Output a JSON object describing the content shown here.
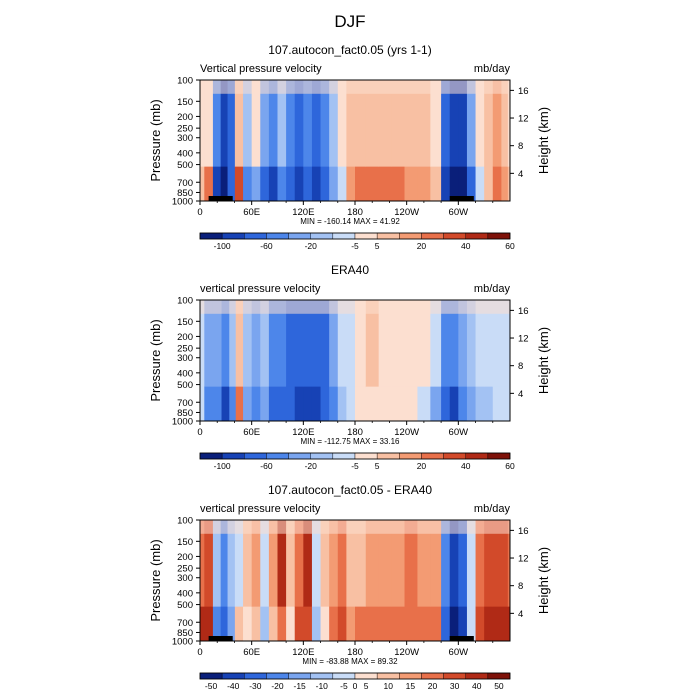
{
  "figure": {
    "title": "DJF"
  },
  "colorscales": {
    "abs": {
      "colors": [
        "#0a1f7a",
        "#1742b5",
        "#2e66db",
        "#4d86ea",
        "#7aa5ef",
        "#a3c2f3",
        "#c9dcf7",
        "#fcdfd0",
        "#f8c0a3",
        "#f39b73",
        "#e8704a",
        "#d24a2a",
        "#b02a16",
        "#7e1209"
      ],
      "tick_labels": [
        "-100",
        "-60",
        "-20",
        "-5",
        "5",
        "20",
        "40",
        "60"
      ],
      "tick_boundaries": [
        1,
        3,
        5,
        7,
        8,
        10,
        12,
        14
      ]
    },
    "diff": {
      "colors": [
        "#0a1f7a",
        "#1742b5",
        "#2e66db",
        "#4d86ea",
        "#7aa5ef",
        "#a3c2f3",
        "#c9dcf7",
        "#fcdfd0",
        "#f8c0a3",
        "#f39b73",
        "#e8704a",
        "#d24a2a",
        "#b02a16",
        "#7e1209"
      ],
      "tick_labels": [
        "-50",
        "-40",
        "-30",
        "-20",
        "-15",
        "-10",
        "-5",
        "0",
        "5",
        "10",
        "15",
        "20",
        "30",
        "40",
        "50"
      ],
      "tick_boundaries": [
        0.5,
        1.5,
        2.5,
        3.5,
        4.5,
        5.5,
        6.5,
        7,
        7.5,
        8.5,
        9.5,
        10.5,
        11.5,
        12.5,
        13.5
      ]
    }
  },
  "chart_data": [
    {
      "type": "heatmap",
      "title": "107.autocon_fact0.05 (yrs 1-1)",
      "left_label": "Vertical pressure velocity",
      "right_label": "mb/day",
      "ylabel": "Pressure (mb)",
      "y2label": "Height (km)",
      "stats": "MIN = -160.14   MAX =  41.92",
      "scale": "abs",
      "xlim": [
        0,
        360
      ],
      "ylim": [
        1000,
        100
      ],
      "x_ticks": [
        "0",
        "60E",
        "120E",
        "180",
        "120W",
        "60W"
      ],
      "x_tick_values": [
        0,
        60,
        120,
        180,
        240,
        300
      ],
      "y_ticks": [
        100,
        150,
        200,
        250,
        300,
        400,
        500,
        700,
        850,
        1000
      ],
      "y2_ticks": [
        4,
        8,
        12,
        16
      ],
      "land_segments": [
        [
          10,
          38
        ],
        [
          290,
          318
        ]
      ],
      "columns": [
        {
          "lon": 0,
          "up": 7,
          "low": 8
        },
        {
          "lon": 10,
          "up": 7,
          "low": 10
        },
        {
          "lon": 20,
          "up": 3,
          "low": 1
        },
        {
          "lon": 28,
          "up": 1,
          "low": 0
        },
        {
          "lon": 36,
          "up": 2,
          "low": 2
        },
        {
          "lon": 45,
          "up": 8,
          "low": 11
        },
        {
          "lon": 55,
          "up": 5,
          "low": 3
        },
        {
          "lon": 65,
          "up": 7,
          "low": 4
        },
        {
          "lon": 75,
          "up": 4,
          "low": 2
        },
        {
          "lon": 85,
          "up": 3,
          "low": 1
        },
        {
          "lon": 95,
          "up": 5,
          "low": 3
        },
        {
          "lon": 105,
          "up": 3,
          "low": 2
        },
        {
          "lon": 115,
          "up": 2,
          "low": 1
        },
        {
          "lon": 125,
          "up": 3,
          "low": 2
        },
        {
          "lon": 135,
          "up": 2,
          "low": 1
        },
        {
          "lon": 145,
          "up": 3,
          "low": 2
        },
        {
          "lon": 155,
          "up": 5,
          "low": 4
        },
        {
          "lon": 165,
          "up": 7,
          "low": 6
        },
        {
          "lon": 175,
          "up": 8,
          "low": 9
        },
        {
          "lon": 185,
          "up": 8,
          "low": 10
        },
        {
          "lon": 200,
          "up": 8,
          "low": 10
        },
        {
          "lon": 215,
          "up": 8,
          "low": 10
        },
        {
          "lon": 230,
          "up": 8,
          "low": 10
        },
        {
          "lon": 245,
          "up": 8,
          "low": 9
        },
        {
          "lon": 260,
          "up": 8,
          "low": 9
        },
        {
          "lon": 275,
          "up": 7,
          "low": 8
        },
        {
          "lon": 285,
          "up": 2,
          "low": 1
        },
        {
          "lon": 295,
          "up": 1,
          "low": 0
        },
        {
          "lon": 305,
          "up": 1,
          "low": 0
        },
        {
          "lon": 315,
          "up": 4,
          "low": 2
        },
        {
          "lon": 325,
          "up": 7,
          "low": 6
        },
        {
          "lon": 335,
          "up": 8,
          "low": 8
        },
        {
          "lon": 345,
          "up": 9,
          "low": 10
        },
        {
          "lon": 355,
          "up": 8,
          "low": 9
        },
        {
          "lon": 360,
          "up": 7,
          "low": 8
        }
      ]
    },
    {
      "type": "heatmap",
      "title": "ERA40",
      "left_label": "vertical pressure velocity",
      "right_label": "mb/day",
      "ylabel": "Pressure (mb)",
      "y2label": "Height (km)",
      "stats": "MIN = -112.75   MAX =  33.16",
      "scale": "abs",
      "xlim": [
        0,
        360
      ],
      "ylim": [
        1000,
        100
      ],
      "x_ticks": [
        "0",
        "60E",
        "120E",
        "180",
        "120W",
        "60W"
      ],
      "x_tick_values": [
        0,
        60,
        120,
        180,
        240,
        300
      ],
      "y_ticks": [
        100,
        150,
        200,
        250,
        300,
        400,
        500,
        700,
        850,
        1000
      ],
      "y2_ticks": [
        4,
        8,
        12,
        16
      ],
      "land_segments": [],
      "columns": [
        {
          "lon": 0,
          "up": 6,
          "low": 6
        },
        {
          "lon": 10,
          "up": 4,
          "low": 3
        },
        {
          "lon": 20,
          "up": 4,
          "low": 3
        },
        {
          "lon": 30,
          "up": 3,
          "low": 1
        },
        {
          "lon": 38,
          "up": 5,
          "low": 3
        },
        {
          "lon": 45,
          "up": 8,
          "low": 10
        },
        {
          "lon": 55,
          "up": 5,
          "low": 4
        },
        {
          "lon": 65,
          "up": 4,
          "low": 3
        },
        {
          "lon": 75,
          "up": 5,
          "low": 4
        },
        {
          "lon": 85,
          "up": 3,
          "low": 2
        },
        {
          "lon": 95,
          "up": 3,
          "low": 2
        },
        {
          "lon": 105,
          "up": 2,
          "low": 2
        },
        {
          "lon": 115,
          "up": 2,
          "low": 1
        },
        {
          "lon": 125,
          "up": 2,
          "low": 1
        },
        {
          "lon": 135,
          "up": 2,
          "low": 1
        },
        {
          "lon": 145,
          "up": 2,
          "low": 2
        },
        {
          "lon": 155,
          "up": 4,
          "low": 3
        },
        {
          "lon": 165,
          "up": 6,
          "low": 5
        },
        {
          "lon": 175,
          "up": 6,
          "low": 6
        },
        {
          "lon": 185,
          "up": 7,
          "low": 7
        },
        {
          "lon": 200,
          "up": 8,
          "low": 7
        },
        {
          "lon": 215,
          "up": 7,
          "low": 7
        },
        {
          "lon": 230,
          "up": 7,
          "low": 7
        },
        {
          "lon": 245,
          "up": 7,
          "low": 7
        },
        {
          "lon": 260,
          "up": 7,
          "low": 6
        },
        {
          "lon": 275,
          "up": 6,
          "low": 4
        },
        {
          "lon": 285,
          "up": 3,
          "low": 2
        },
        {
          "lon": 295,
          "up": 3,
          "low": 1
        },
        {
          "lon": 305,
          "up": 4,
          "low": 3
        },
        {
          "lon": 315,
          "up": 5,
          "low": 4
        },
        {
          "lon": 325,
          "up": 6,
          "low": 5
        },
        {
          "lon": 335,
          "up": 6,
          "low": 5
        },
        {
          "lon": 345,
          "up": 6,
          "low": 6
        },
        {
          "lon": 355,
          "up": 6,
          "low": 6
        },
        {
          "lon": 360,
          "up": 6,
          "low": 6
        }
      ]
    },
    {
      "type": "heatmap",
      "title": "107.autocon_fact0.05 - ERA40",
      "left_label": "vertical pressure velocity",
      "right_label": "mb/day",
      "ylabel": "Pressure (mb)",
      "y2label": "Height (km)",
      "stats": "MIN = -83.88   MAX =  89.32",
      "scale": "diff",
      "xlim": [
        0,
        360
      ],
      "ylim": [
        1000,
        100
      ],
      "x_ticks": [
        "0",
        "60E",
        "120E",
        "180",
        "120W",
        "60W"
      ],
      "x_tick_values": [
        0,
        60,
        120,
        180,
        240,
        300
      ],
      "y_ticks": [
        100,
        150,
        200,
        250,
        300,
        400,
        500,
        700,
        850,
        1000
      ],
      "y2_ticks": [
        4,
        8,
        12,
        16
      ],
      "land_segments": [
        [
          10,
          38
        ],
        [
          290,
          318
        ]
      ],
      "columns": [
        {
          "lon": 0,
          "up": 10,
          "low": 12
        },
        {
          "lon": 10,
          "up": 11,
          "low": 12
        },
        {
          "lon": 20,
          "up": 5,
          "low": 3
        },
        {
          "lon": 28,
          "up": 3,
          "low": 2
        },
        {
          "lon": 36,
          "up": 5,
          "low": 4
        },
        {
          "lon": 45,
          "up": 6,
          "low": 8
        },
        {
          "lon": 55,
          "up": 8,
          "low": 7
        },
        {
          "lon": 65,
          "up": 9,
          "low": 8
        },
        {
          "lon": 75,
          "up": 6,
          "low": 5
        },
        {
          "lon": 85,
          "up": 9,
          "low": 8
        },
        {
          "lon": 95,
          "up": 12,
          "low": 10
        },
        {
          "lon": 105,
          "up": 8,
          "low": 7
        },
        {
          "lon": 115,
          "up": 10,
          "low": 11
        },
        {
          "lon": 125,
          "up": 12,
          "low": 11
        },
        {
          "lon": 135,
          "up": 6,
          "low": 5
        },
        {
          "lon": 145,
          "up": 8,
          "low": 7
        },
        {
          "lon": 155,
          "up": 9,
          "low": 10
        },
        {
          "lon": 165,
          "up": 10,
          "low": 11
        },
        {
          "lon": 175,
          "up": 8,
          "low": 9
        },
        {
          "lon": 185,
          "up": 8,
          "low": 10
        },
        {
          "lon": 200,
          "up": 9,
          "low": 10
        },
        {
          "lon": 215,
          "up": 9,
          "low": 10
        },
        {
          "lon": 230,
          "up": 9,
          "low": 10
        },
        {
          "lon": 245,
          "up": 10,
          "low": 10
        },
        {
          "lon": 260,
          "up": 9,
          "low": 10
        },
        {
          "lon": 275,
          "up": 9,
          "low": 10
        },
        {
          "lon": 285,
          "up": 3,
          "low": 2
        },
        {
          "lon": 295,
          "up": 1,
          "low": 0
        },
        {
          "lon": 305,
          "up": 2,
          "low": 1
        },
        {
          "lon": 315,
          "up": 6,
          "low": 6
        },
        {
          "lon": 325,
          "up": 10,
          "low": 11
        },
        {
          "lon": 335,
          "up": 11,
          "low": 12
        },
        {
          "lon": 345,
          "up": 11,
          "low": 12
        },
        {
          "lon": 355,
          "up": 11,
          "low": 12
        },
        {
          "lon": 360,
          "up": 10,
          "low": 12
        }
      ]
    }
  ]
}
